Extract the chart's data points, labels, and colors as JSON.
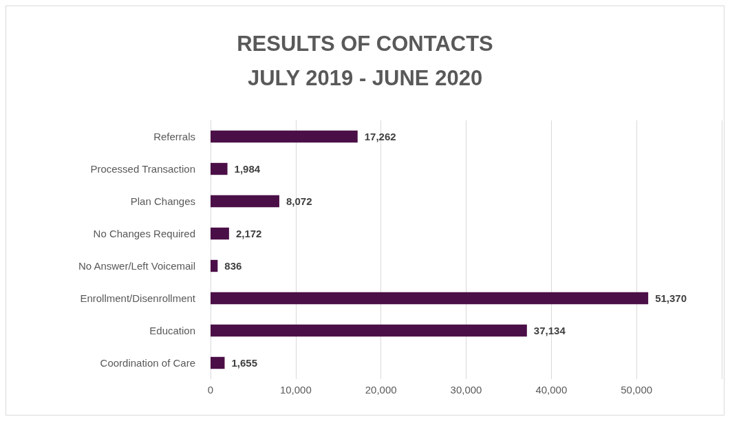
{
  "chart_data": {
    "type": "bar",
    "orientation": "horizontal",
    "title": "RESULTS OF CONTACTS\nJULY 2019 - JUNE 2020",
    "categories": [
      "Referrals",
      "Processed Transaction",
      "Plan Changes",
      "No Changes Required",
      "No Answer/Left Voicemail",
      "Enrollment/Disenrollment",
      "Education",
      "Coordination of Care"
    ],
    "values": [
      17262,
      1984,
      8072,
      2172,
      836,
      51370,
      37134,
      1655
    ],
    "value_labels": [
      "17,262",
      "1,984",
      "8,072",
      "2,172",
      "836",
      "51,370",
      "37,134",
      "1,655"
    ],
    "color": "#4b0f47",
    "xlim": [
      0,
      60000
    ],
    "xticks": [
      0,
      {
        "value": 10000,
        "label": "10,000"
      },
      {
        "value": 20000,
        "label": "20,000"
      },
      {
        "value": 30000,
        "label": "30,000"
      },
      {
        "value": 40000,
        "label": "40,000"
      },
      {
        "value": 50000,
        "label": "50,000"
      },
      {
        "value": 60000,
        "label": null
      }
    ],
    "grid": "x"
  }
}
